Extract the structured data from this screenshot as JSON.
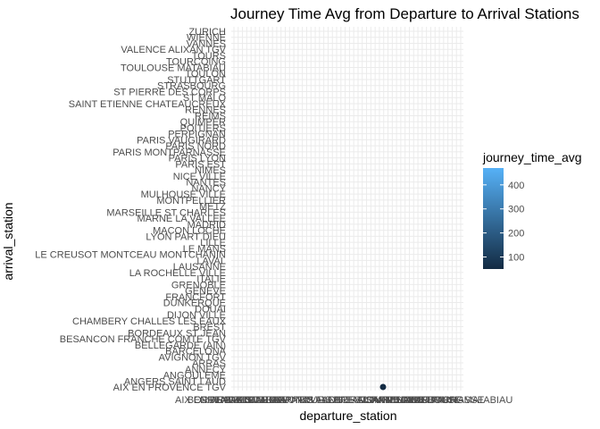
{
  "chart_data": {
    "type": "heatmap",
    "title": "Journey Time Avg from Departure to Arrival Stations",
    "xlabel": "departure_station",
    "ylabel": "arrival_station",
    "y_categories": [
      "AIX EN PROVENCE TGV",
      "ANGERS SAINT LAUD",
      "ANGOULEME",
      "ANNECY",
      "ARRAS",
      "AVIGNON TGV",
      "BARCELONA",
      "BELLEGARDE (AIN)",
      "BESANCON FRANCHE COMTE TGV",
      "BORDEAUX ST JEAN",
      "BREST",
      "CHAMBERY CHALLES LES EAUX",
      "DIJON VILLE",
      "DOUAI",
      "DUNKERQUE",
      "FRANCFORT",
      "GENEVE",
      "GRENOBLE",
      "ITALIE",
      "LA ROCHELLE VILLE",
      "LAUSANNE",
      "LAVAL",
      "LE CREUSOT MONTCEAU MONTCHANIN",
      "LE MANS",
      "LILLE",
      "LYON PART DIEU",
      "MACON LOCHE",
      "MADRID",
      "MARNE LA VALLEE",
      "MARSEILLE ST CHARLES",
      "METZ",
      "MONTPELLIER",
      "MULHOUSE VILLE",
      "NANCY",
      "NANTES",
      "NICE VILLE",
      "NIMES",
      "PARIS EST",
      "PARIS LYON",
      "PARIS MONTPARNASSE",
      "PARIS NORD",
      "PARIS VAUGIRARD",
      "PERPIGNAN",
      "POITIERS",
      "QUIMPER",
      "REIMS",
      "RENNES",
      "SAINT ETIENNE CHATEAUCREUX",
      "ST MALO",
      "ST PIERRE DES CORPS",
      "STRASBOURG",
      "STUTTGART",
      "TOULON",
      "TOULOUSE MATABIAU",
      "TOURCOING",
      "TOURS",
      "VALENCE ALIXAN TGV",
      "VANNES",
      "WIENNE",
      "ZURICH"
    ],
    "x_tick_labels": [
      "AIX EN PROVENCE TGV",
      "BORDEAUX ST JEAN",
      "GRENOBLE",
      "MADRID",
      "PARIS EST",
      "ST MALO",
      "BARCELONA",
      "LILLE",
      "NANTES",
      "PARIS LYON",
      "TOURS",
      "VALENCE ALIXAN TGV",
      "ANGERS SAINT LAUD",
      "BREST",
      "LAUSANNE",
      "MONTPELLIER",
      "PARIS MONTPARNASSE",
      "RENNES",
      "STRASBOURG",
      "TOULOUSE MATABIAU",
      "ZURICH"
    ],
    "points": [
      {
        "x": "AIX EN PROVENCE TGV",
        "y": "AIX EN PROVENCE TGV",
        "value": 50
      }
    ],
    "legend": {
      "title": "journey_time_avg",
      "ticks": [
        100,
        200,
        300,
        400
      ],
      "range": [
        50,
        470
      ],
      "low_color": "#132b43",
      "high_color": "#56b1f7"
    },
    "grid": true
  }
}
